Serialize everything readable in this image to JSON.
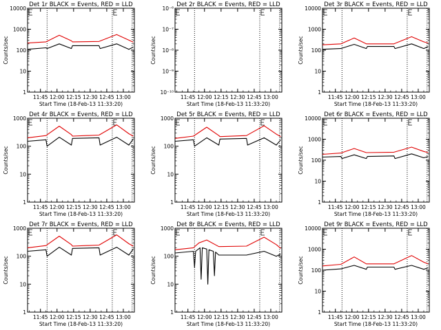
{
  "figure": {
    "xlabel": "Start Time (18-Feb-13 11:33:20)",
    "ylabel": "Counts/sec",
    "x_ticks": [
      "11:45",
      "12:00",
      "12:15",
      "12:30",
      "12:45",
      "13:00"
    ],
    "colors": {
      "events": "#000000",
      "lld": "#e00000",
      "axis": "#000000"
    }
  },
  "chart_data": [
    {
      "type": "line",
      "title": "Det 1r BLACK = Events, RED = LLD",
      "ylabel": "Counts/sec",
      "xlabel": "Start Time (18-Feb-13 11:33:20)",
      "y_scale": "log",
      "ylim": [
        1,
        10000
      ],
      "y_ticks": [
        "1",
        "10",
        "100",
        "1000",
        "10000"
      ],
      "x_ticks": [
        "11:45",
        "12:00",
        "12:15",
        "12:30",
        "12:45",
        "13:00"
      ],
      "xlim": [
        "11:33:20",
        "13:10"
      ],
      "vlines": [
        "11:51",
        "12:50",
        "13:08"
      ],
      "series": [
        {
          "name": "Events",
          "color": "#000000",
          "points": [
            [
              "11:33:20",
              110
            ],
            [
              "11:50",
              130
            ],
            [
              "11:51",
              120
            ],
            [
              "12:02",
              200
            ],
            [
              "12:13",
              120
            ],
            [
              "12:14",
              165
            ],
            [
              "12:38",
              165
            ],
            [
              "12:39",
              120
            ],
            [
              "12:54",
              200
            ],
            [
              "13:05",
              110
            ],
            [
              "13:09",
              140
            ]
          ]
        },
        {
          "name": "LLD",
          "color": "#e00000",
          "points": [
            [
              "11:33:20",
              220
            ],
            [
              "11:50",
              250
            ],
            [
              "12:02",
              520
            ],
            [
              "12:13",
              280
            ],
            [
              "12:14",
              250
            ],
            [
              "12:38",
              260
            ],
            [
              "12:54",
              560
            ],
            [
              "13:05",
              300
            ],
            [
              "13:09",
              240
            ]
          ]
        }
      ]
    },
    {
      "type": "line",
      "title": "Det 2r BLACK = Events, RED = LLD",
      "ylabel": "Counts/sec",
      "xlabel": "Start Time (18-Feb-13 11:33:20)",
      "y_scale": "log",
      "ylim": [
        1e-10,
        1e-06
      ],
      "y_ticks": [
        "10⁻¹⁰",
        "10⁻⁹",
        "10⁻⁸",
        "10⁻⁷",
        "10⁻⁶"
      ],
      "x_ticks": [
        "11:45",
        "12:00",
        "12:15",
        "12:30",
        "12:45",
        "13:00"
      ],
      "xlim": [
        "11:33:20",
        "13:10"
      ],
      "vlines": [
        "11:51",
        "12:50",
        "13:08"
      ],
      "series": []
    },
    {
      "type": "line",
      "title": "Det 3r BLACK = Events, RED = LLD",
      "ylabel": "Counts/sec",
      "xlabel": "Start Time (18-Feb-13 11:33:20)",
      "y_scale": "log",
      "ylim": [
        1,
        10000
      ],
      "y_ticks": [
        "1",
        "10",
        "100",
        "1000",
        "10000"
      ],
      "x_ticks": [
        "11:45",
        "12:00",
        "12:15",
        "12:30",
        "12:45",
        "13:00"
      ],
      "xlim": [
        "11:33:20",
        "13:10"
      ],
      "vlines": [
        "11:51",
        "12:50",
        "13:08"
      ],
      "series": [
        {
          "name": "Events",
          "color": "#000000",
          "points": [
            [
              "11:33:20",
              110
            ],
            [
              "11:50",
              120
            ],
            [
              "12:02",
              190
            ],
            [
              "12:13",
              120
            ],
            [
              "12:14",
              150
            ],
            [
              "12:38",
              150
            ],
            [
              "12:39",
              120
            ],
            [
              "12:54",
              200
            ],
            [
              "13:05",
              120
            ],
            [
              "13:09",
              150
            ]
          ]
        },
        {
          "name": "LLD",
          "color": "#e00000",
          "points": [
            [
              "11:33:20",
              180
            ],
            [
              "11:50",
              200
            ],
            [
              "12:02",
              380
            ],
            [
              "12:13",
              200
            ],
            [
              "12:38",
              200
            ],
            [
              "12:54",
              440
            ],
            [
              "13:05",
              250
            ],
            [
              "13:09",
              220
            ]
          ]
        }
      ]
    },
    {
      "type": "line",
      "title": "Det 4r BLACK = Events, RED = LLD",
      "ylabel": "Counts/sec",
      "xlabel": "Start Time (18-Feb-13 11:33:20)",
      "y_scale": "log",
      "ylim": [
        1,
        1000
      ],
      "y_ticks": [
        "1",
        "10",
        "100",
        "1000"
      ],
      "x_ticks": [
        "11:45",
        "12:00",
        "12:15",
        "12:30",
        "12:45",
        "13:00"
      ],
      "xlim": [
        "11:33:20",
        "13:10"
      ],
      "vlines": [
        "11:51",
        "12:50",
        "13:08"
      ],
      "series": [
        {
          "name": "Events",
          "color": "#000000",
          "points": [
            [
              "11:33:20",
              150
            ],
            [
              "11:50",
              170
            ],
            [
              "11:51",
              100
            ],
            [
              "12:02",
              210
            ],
            [
              "12:13",
              110
            ],
            [
              "12:14",
              190
            ],
            [
              "12:38",
              200
            ],
            [
              "12:39",
              110
            ],
            [
              "12:54",
              210
            ],
            [
              "13:05",
              110
            ],
            [
              "13:09",
              180
            ]
          ]
        },
        {
          "name": "LLD",
          "color": "#e00000",
          "points": [
            [
              "11:33:20",
              200
            ],
            [
              "11:50",
              240
            ],
            [
              "12:02",
              520
            ],
            [
              "12:13",
              260
            ],
            [
              "12:14",
              230
            ],
            [
              "12:38",
              250
            ],
            [
              "12:54",
              580
            ],
            [
              "13:05",
              280
            ],
            [
              "13:09",
              230
            ]
          ]
        }
      ]
    },
    {
      "type": "line",
      "title": "Det 5r BLACK = Events, RED = LLD",
      "ylabel": "Counts/sec",
      "xlabel": "Start Time (18-Feb-13 11:33:20)",
      "y_scale": "log",
      "ylim": [
        1,
        1000
      ],
      "y_ticks": [
        "1",
        "10",
        "100",
        "1000"
      ],
      "x_ticks": [
        "11:45",
        "12:00",
        "12:15",
        "12:30",
        "12:45",
        "13:00"
      ],
      "xlim": [
        "11:33:20",
        "13:10"
      ],
      "vlines": [
        "11:51",
        "12:50",
        "13:08"
      ],
      "series": [
        {
          "name": "Events",
          "color": "#000000",
          "points": [
            [
              "11:33:20",
              150
            ],
            [
              "11:50",
              170
            ],
            [
              "11:51",
              100
            ],
            [
              "12:02",
              200
            ],
            [
              "12:13",
              110
            ],
            [
              "12:14",
              180
            ],
            [
              "12:38",
              190
            ],
            [
              "12:39",
              110
            ],
            [
              "12:54",
              200
            ],
            [
              "13:05",
              110
            ],
            [
              "13:09",
              170
            ]
          ]
        },
        {
          "name": "LLD",
          "color": "#e00000",
          "points": [
            [
              "11:33:20",
              190
            ],
            [
              "11:50",
              230
            ],
            [
              "12:02",
              480
            ],
            [
              "12:13",
              240
            ],
            [
              "12:14",
              220
            ],
            [
              "12:38",
              240
            ],
            [
              "12:54",
              540
            ],
            [
              "13:05",
              270
            ],
            [
              "13:09",
              220
            ]
          ]
        }
      ]
    },
    {
      "type": "line",
      "title": "Det 6r BLACK = Events, RED = LLD",
      "ylabel": "Counts/sec",
      "xlabel": "Start Time (18-Feb-13 11:33:20)",
      "y_scale": "log",
      "ylim": [
        1,
        10000
      ],
      "y_ticks": [
        "1",
        "10",
        "100",
        "1000",
        "10000"
      ],
      "x_ticks": [
        "11:45",
        "12:00",
        "12:15",
        "12:30",
        "12:45",
        "13:00"
      ],
      "xlim": [
        "11:33:20",
        "13:10"
      ],
      "vlines": [
        "11:51",
        "12:50",
        "13:08"
      ],
      "series": [
        {
          "name": "Events",
          "color": "#000000",
          "points": [
            [
              "11:33:20",
              140
            ],
            [
              "11:50",
              150
            ],
            [
              "11:51",
              120
            ],
            [
              "12:02",
              180
            ],
            [
              "12:13",
              120
            ],
            [
              "12:14",
              150
            ],
            [
              "12:38",
              160
            ],
            [
              "12:39",
              120
            ],
            [
              "12:54",
              200
            ],
            [
              "13:05",
              130
            ],
            [
              "13:09",
              150
            ]
          ]
        },
        {
          "name": "LLD",
          "color": "#e00000",
          "points": [
            [
              "11:33:20",
              190
            ],
            [
              "11:50",
              220
            ],
            [
              "12:02",
              360
            ],
            [
              "12:13",
              230
            ],
            [
              "12:38",
              240
            ],
            [
              "12:54",
              420
            ],
            [
              "13:05",
              260
            ],
            [
              "13:09",
              230
            ]
          ]
        }
      ]
    },
    {
      "type": "line",
      "title": "Det 7r BLACK = Events, RED = LLD",
      "ylabel": "Counts/sec",
      "xlabel": "Start Time (18-Feb-13 11:33:20)",
      "y_scale": "log",
      "ylim": [
        1,
        1000
      ],
      "y_ticks": [
        "1",
        "10",
        "100",
        "1000"
      ],
      "x_ticks": [
        "11:45",
        "12:00",
        "12:15",
        "12:30",
        "12:45",
        "13:00"
      ],
      "xlim": [
        "11:33:20",
        "13:10"
      ],
      "vlines": [
        "11:51",
        "12:50",
        "13:08"
      ],
      "series": [
        {
          "name": "Events",
          "color": "#000000",
          "points": [
            [
              "11:33:20",
              150
            ],
            [
              "11:50",
              170
            ],
            [
              "11:51",
              100
            ],
            [
              "12:02",
              210
            ],
            [
              "12:13",
              110
            ],
            [
              "12:14",
              190
            ],
            [
              "12:38",
              200
            ],
            [
              "12:39",
              110
            ],
            [
              "12:54",
              210
            ],
            [
              "13:05",
              110
            ],
            [
              "13:09",
              180
            ]
          ]
        },
        {
          "name": "LLD",
          "color": "#e00000",
          "points": [
            [
              "11:33:20",
              200
            ],
            [
              "11:50",
              240
            ],
            [
              "12:02",
              520
            ],
            [
              "12:13",
              260
            ],
            [
              "12:14",
              230
            ],
            [
              "12:38",
              250
            ],
            [
              "12:54",
              580
            ],
            [
              "13:05",
              280
            ],
            [
              "13:09",
              230
            ]
          ]
        }
      ]
    },
    {
      "type": "line",
      "title": "Det 8r BLACK = Events, RED = LLD",
      "ylabel": "Counts/sec",
      "xlabel": "Start Time (18-Feb-13 11:33:20)",
      "y_scale": "log",
      "ylim": [
        1,
        1000
      ],
      "y_ticks": [
        "1",
        "10",
        "100",
        "1000"
      ],
      "x_ticks": [
        "11:45",
        "12:00",
        "12:15",
        "12:30",
        "12:45",
        "13:00"
      ],
      "xlim": [
        "11:33:20",
        "13:10"
      ],
      "vlines": [
        "11:51",
        "12:50",
        "13:08"
      ],
      "series": [
        {
          "name": "Events",
          "color": "#000000",
          "points": [
            [
              "11:33:20",
              130
            ],
            [
              "11:50",
              150
            ],
            [
              "11:51",
              40
            ],
            [
              "11:52",
              150
            ],
            [
              "11:56",
              200
            ],
            [
              "11:57",
              15
            ],
            [
              "11:58",
              200
            ],
            [
              "12:02",
              180
            ],
            [
              "12:03",
              10
            ],
            [
              "12:04",
              170
            ],
            [
              "12:08",
              150
            ],
            [
              "12:09",
              20
            ],
            [
              "12:10",
              140
            ],
            [
              "12:13",
              110
            ],
            [
              "12:38",
              110
            ],
            [
              "12:54",
              150
            ],
            [
              "13:05",
              100
            ],
            [
              "13:09",
              120
            ]
          ]
        },
        {
          "name": "LLD",
          "color": "#e00000",
          "points": [
            [
              "11:33:20",
              170
            ],
            [
              "11:50",
              200
            ],
            [
              "11:55",
              300
            ],
            [
              "12:02",
              380
            ],
            [
              "12:13",
              220
            ],
            [
              "12:38",
              230
            ],
            [
              "12:54",
              480
            ],
            [
              "13:05",
              260
            ],
            [
              "13:09",
              190
            ]
          ]
        }
      ]
    },
    {
      "type": "line",
      "title": "Det 9r BLACK = Events, RED = LLD",
      "ylabel": "Counts/sec",
      "xlabel": "Start Time (18-Feb-13 11:33:20)",
      "y_scale": "log",
      "ylim": [
        1,
        10000
      ],
      "y_ticks": [
        "1",
        "10",
        "100",
        "1000",
        "10000"
      ],
      "x_ticks": [
        "11:45",
        "12:00",
        "12:15",
        "12:30",
        "12:45",
        "13:00"
      ],
      "xlim": [
        "11:33:20",
        "13:10"
      ],
      "vlines": [
        "11:51",
        "12:50",
        "13:08"
      ],
      "series": [
        {
          "name": "Events",
          "color": "#000000",
          "points": [
            [
              "11:33:20",
              100
            ],
            [
              "11:50",
              115
            ],
            [
              "12:02",
              170
            ],
            [
              "12:13",
              110
            ],
            [
              "12:14",
              140
            ],
            [
              "12:38",
              140
            ],
            [
              "12:39",
              110
            ],
            [
              "12:54",
              170
            ],
            [
              "13:05",
              110
            ],
            [
              "13:09",
              130
            ]
          ]
        },
        {
          "name": "LLD",
          "color": "#e00000",
          "points": [
            [
              "11:33:20",
              160
            ],
            [
              "11:50",
              190
            ],
            [
              "12:02",
              430
            ],
            [
              "12:13",
              200
            ],
            [
              "12:38",
              200
            ],
            [
              "12:54",
              500
            ],
            [
              "13:05",
              240
            ],
            [
              "13:09",
              200
            ]
          ]
        }
      ]
    }
  ]
}
